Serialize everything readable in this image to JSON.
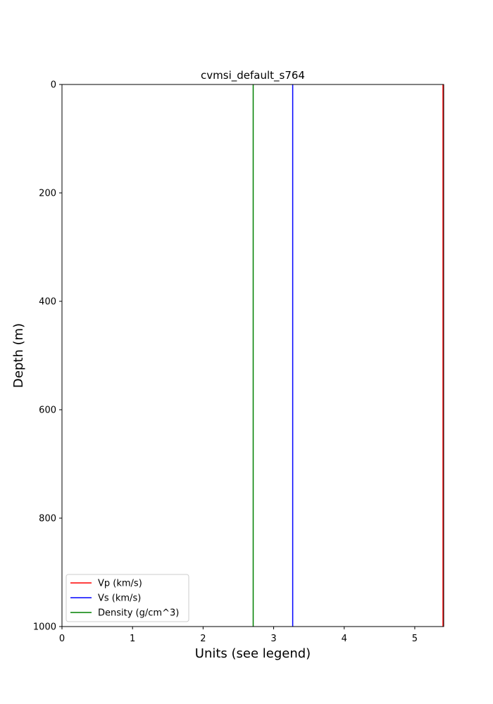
{
  "chart_data": {
    "type": "line",
    "title": "cvmsi_default_s764",
    "xlabel": "Units (see legend)",
    "ylabel": "Depth (m)",
    "xlim": [
      0,
      5.41
    ],
    "ylim": [
      1000,
      0
    ],
    "y_inverted": true,
    "x_ticks": [
      "0",
      "1",
      "2",
      "3",
      "4",
      "5"
    ],
    "y_ticks": [
      "0",
      "200",
      "400",
      "600",
      "800",
      "1000"
    ],
    "grid": false,
    "legend_position": "lower-left",
    "series": [
      {
        "name": "Vp (km/s)",
        "color": "#ff0000",
        "x": [
          5.4,
          5.4
        ],
        "depth": [
          0,
          1000
        ]
      },
      {
        "name": "Vs (km/s)",
        "color": "#0000ff",
        "x": [
          3.27,
          3.27
        ],
        "depth": [
          0,
          1000
        ]
      },
      {
        "name": "Density (g/cm^3)",
        "color": "#008000",
        "x": [
          2.71,
          2.71
        ],
        "depth": [
          0,
          1000
        ]
      }
    ]
  }
}
